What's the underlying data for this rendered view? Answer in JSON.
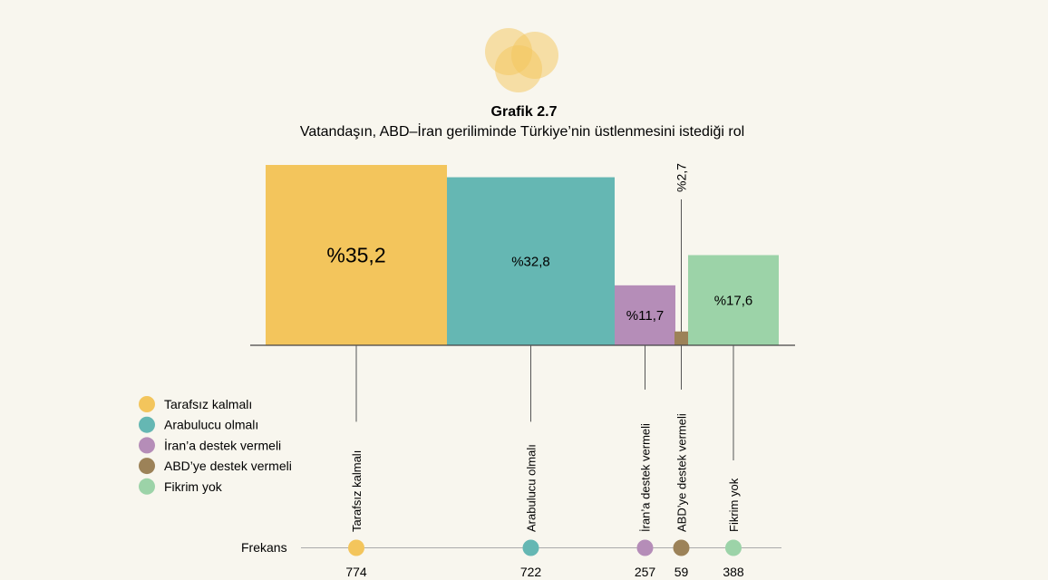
{
  "chart_data": {
    "type": "bar",
    "title": "Grafik 2.7",
    "subtitle": "Vatandaşın, ABD–İran geriliminde Türkiye’nin üstlenmesini istediği rol",
    "categories": [
      "Tarafsız kalmalı",
      "Arabulucu olmalı",
      "İran’a destek vermeli",
      "ABD’ye destek vermeli",
      "Fikrim yok"
    ],
    "values": [
      35.2,
      32.8,
      11.7,
      2.7,
      17.6
    ],
    "value_labels": [
      "%35,2",
      "%32,8",
      "%11,7",
      "%2,7",
      "%17,6"
    ],
    "frequencies": [
      774,
      722,
      257,
      59,
      388
    ],
    "frequency_label": "Frekans",
    "colors": [
      "#f3c55c",
      "#65b7b3",
      "#b58db8",
      "#9c8258",
      "#9cd3a8"
    ],
    "legend_position": "left",
    "ylim": [
      0,
      35.2
    ]
  }
}
